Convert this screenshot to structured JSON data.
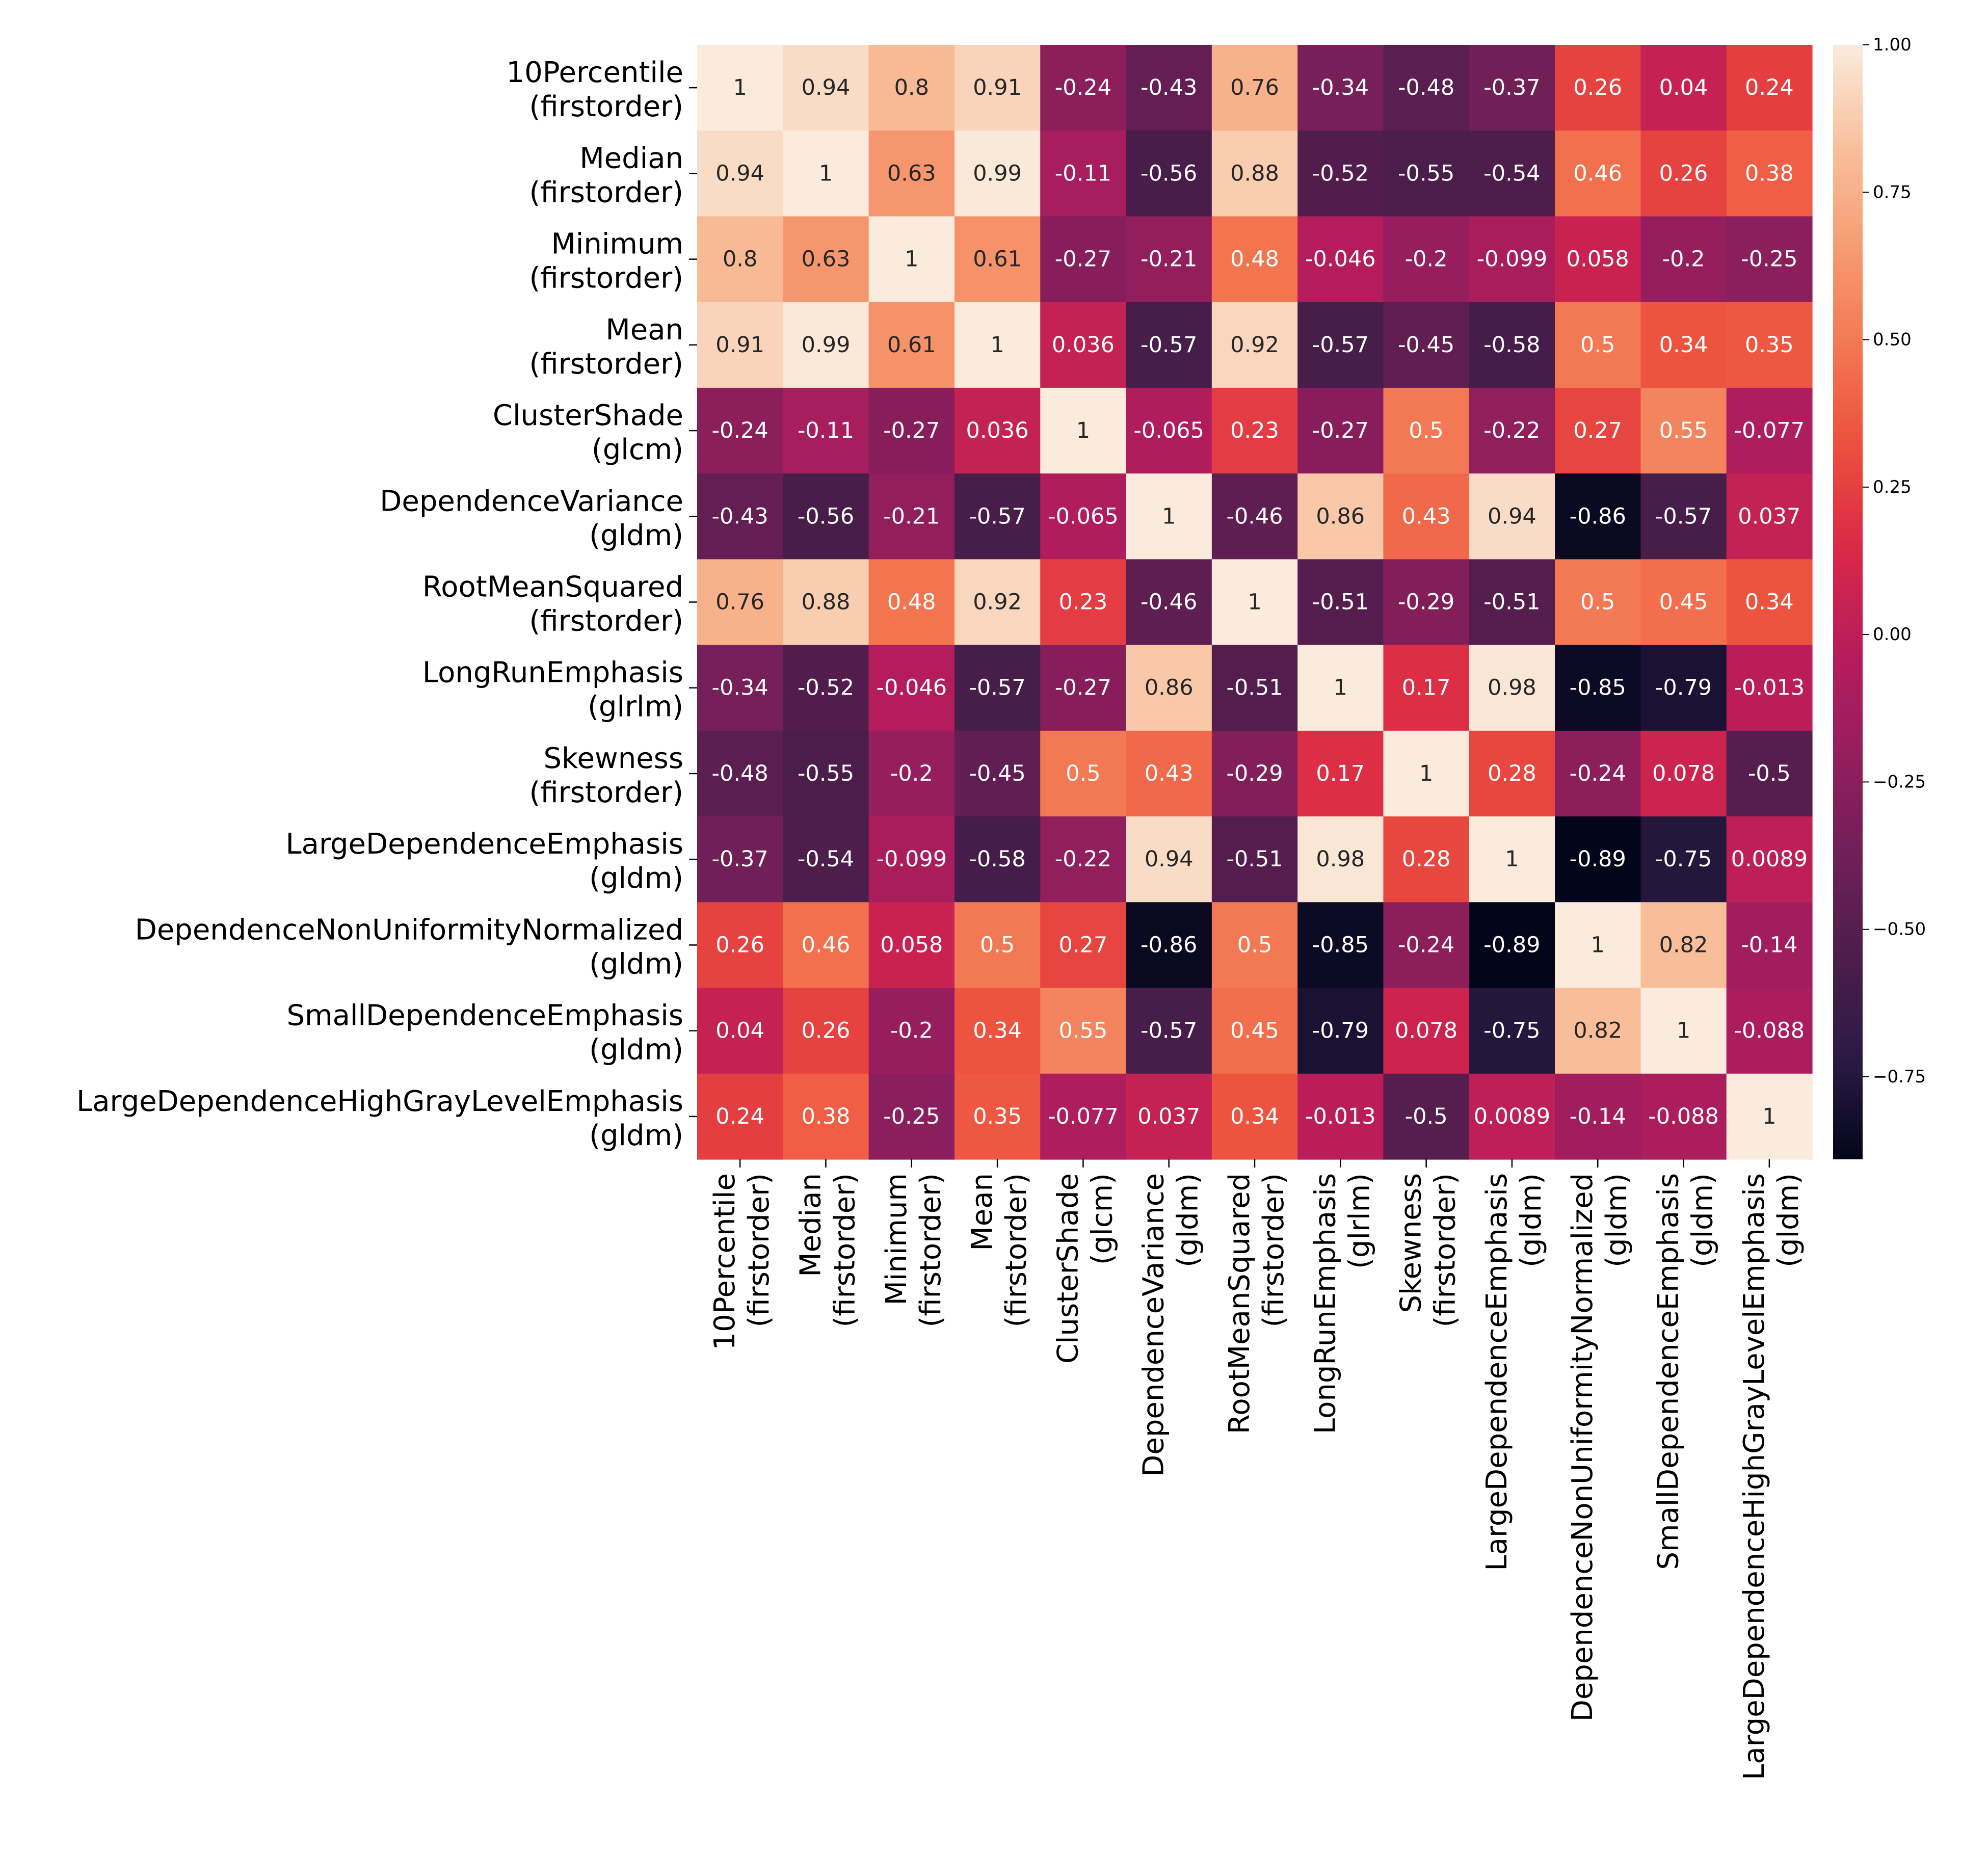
{
  "chart_data": {
    "type": "heatmap",
    "title": "",
    "row_labels": [
      [
        "10Percentile",
        "(firstorder)"
      ],
      [
        "Median",
        "(firstorder)"
      ],
      [
        "Minimum",
        "(firstorder)"
      ],
      [
        "Mean",
        "(firstorder)"
      ],
      [
        "ClusterShade",
        "(glcm)"
      ],
      [
        "DependenceVariance",
        "(gldm)"
      ],
      [
        "RootMeanSquared",
        "(firstorder)"
      ],
      [
        "LongRunEmphasis",
        "(glrlm)"
      ],
      [
        "Skewness",
        "(firstorder)"
      ],
      [
        "LargeDependenceEmphasis",
        "(gldm)"
      ],
      [
        "DependenceNonUniformityNormalized",
        "(gldm)"
      ],
      [
        "SmallDependenceEmphasis",
        "(gldm)"
      ],
      [
        "LargeDependenceHighGrayLevelEmphasis",
        "(gldm)"
      ]
    ],
    "col_labels": [
      [
        "10Percentile",
        "(firstorder)"
      ],
      [
        "Median",
        "(firstorder)"
      ],
      [
        "Minimum",
        "(firstorder)"
      ],
      [
        "Mean",
        "(firstorder)"
      ],
      [
        "ClusterShade",
        "(glcm)"
      ],
      [
        "DependenceVariance",
        "(gldm)"
      ],
      [
        "RootMeanSquared",
        "(firstorder)"
      ],
      [
        "LongRunEmphasis",
        "(glrlm)"
      ],
      [
        "Skewness",
        "(firstorder)"
      ],
      [
        "LargeDependenceEmphasis",
        "(gldm)"
      ],
      [
        "DependenceNonUniformityNormalized",
        "(gldm)"
      ],
      [
        "SmallDependenceEmphasis",
        "(gldm)"
      ],
      [
        "LargeDependenceHighGrayLevelEmphasis",
        "(gldm)"
      ]
    ],
    "values": [
      [
        1,
        0.94,
        0.8,
        0.91,
        -0.24,
        -0.43,
        0.76,
        -0.34,
        -0.48,
        -0.37,
        0.26,
        0.04,
        0.24
      ],
      [
        0.94,
        1,
        0.63,
        0.99,
        -0.11,
        -0.56,
        0.88,
        -0.52,
        -0.55,
        -0.54,
        0.46,
        0.26,
        0.38
      ],
      [
        0.8,
        0.63,
        1,
        0.61,
        -0.27,
        -0.21,
        0.48,
        -0.046,
        -0.2,
        -0.099,
        0.058,
        -0.2,
        -0.25
      ],
      [
        0.91,
        0.99,
        0.61,
        1,
        0.036,
        -0.57,
        0.92,
        -0.57,
        -0.45,
        -0.58,
        0.5,
        0.34,
        0.35
      ],
      [
        -0.24,
        -0.11,
        -0.27,
        0.036,
        1,
        -0.065,
        0.23,
        -0.27,
        0.5,
        -0.22,
        0.27,
        0.55,
        -0.077
      ],
      [
        -0.43,
        -0.56,
        -0.21,
        -0.57,
        -0.065,
        1,
        -0.46,
        0.86,
        0.43,
        0.94,
        -0.86,
        -0.57,
        0.037
      ],
      [
        0.76,
        0.88,
        0.48,
        0.92,
        0.23,
        -0.46,
        1,
        -0.51,
        -0.29,
        -0.51,
        0.5,
        0.45,
        0.34
      ],
      [
        -0.34,
        -0.52,
        -0.046,
        -0.57,
        -0.27,
        0.86,
        -0.51,
        1,
        0.17,
        0.98,
        -0.85,
        -0.79,
        -0.013
      ],
      [
        -0.48,
        -0.55,
        -0.2,
        -0.45,
        0.5,
        0.43,
        -0.29,
        0.17,
        1,
        0.28,
        -0.24,
        0.078,
        -0.5
      ],
      [
        -0.37,
        -0.54,
        -0.099,
        -0.58,
        -0.22,
        0.94,
        -0.51,
        0.98,
        0.28,
        1,
        -0.89,
        -0.75,
        0.0089
      ],
      [
        0.26,
        0.46,
        0.058,
        0.5,
        0.27,
        -0.86,
        0.5,
        -0.85,
        -0.24,
        -0.89,
        1,
        0.82,
        -0.14
      ],
      [
        0.04,
        0.26,
        -0.2,
        0.34,
        0.55,
        -0.57,
        0.45,
        -0.79,
        0.078,
        -0.75,
        0.82,
        1,
        -0.088
      ],
      [
        0.24,
        0.38,
        -0.25,
        0.35,
        -0.077,
        0.037,
        0.34,
        -0.013,
        -0.5,
        0.0089,
        -0.14,
        -0.088,
        1
      ]
    ],
    "value_labels": [
      [
        "1",
        "0.94",
        "0.8",
        "0.91",
        "-0.24",
        "-0.43",
        "0.76",
        "-0.34",
        "-0.48",
        "-0.37",
        "0.26",
        "0.04",
        "0.24"
      ],
      [
        "0.94",
        "1",
        "0.63",
        "0.99",
        "-0.11",
        "-0.56",
        "0.88",
        "-0.52",
        "-0.55",
        "-0.54",
        "0.46",
        "0.26",
        "0.38"
      ],
      [
        "0.8",
        "0.63",
        "1",
        "0.61",
        "-0.27",
        "-0.21",
        "0.48",
        "-0.046",
        "-0.2",
        "-0.099",
        "0.058",
        "-0.2",
        "-0.25"
      ],
      [
        "0.91",
        "0.99",
        "0.61",
        "1",
        "0.036",
        "-0.57",
        "0.92",
        "-0.57",
        "-0.45",
        "-0.58",
        "0.5",
        "0.34",
        "0.35"
      ],
      [
        "-0.24",
        "-0.11",
        "-0.27",
        "0.036",
        "1",
        "-0.065",
        "0.23",
        "-0.27",
        "0.5",
        "-0.22",
        "0.27",
        "0.55",
        "-0.077"
      ],
      [
        "-0.43",
        "-0.56",
        "-0.21",
        "-0.57",
        "-0.065",
        "1",
        "-0.46",
        "0.86",
        "0.43",
        "0.94",
        "-0.86",
        "-0.57",
        "0.037"
      ],
      [
        "0.76",
        "0.88",
        "0.48",
        "0.92",
        "0.23",
        "-0.46",
        "1",
        "-0.51",
        "-0.29",
        "-0.51",
        "0.5",
        "0.45",
        "0.34"
      ],
      [
        "-0.34",
        "-0.52",
        "-0.046",
        "-0.57",
        "-0.27",
        "0.86",
        "-0.51",
        "1",
        "0.17",
        "0.98",
        "-0.85",
        "-0.79",
        "-0.013"
      ],
      [
        "-0.48",
        "-0.55",
        "-0.2",
        "-0.45",
        "0.5",
        "0.43",
        "-0.29",
        "0.17",
        "1",
        "0.28",
        "-0.24",
        "0.078",
        "-0.5"
      ],
      [
        "-0.37",
        "-0.54",
        "-0.099",
        "-0.58",
        "-0.22",
        "0.94",
        "-0.51",
        "0.98",
        "0.28",
        "1",
        "-0.89",
        "-0.75",
        "0.0089"
      ],
      [
        "0.26",
        "0.46",
        "0.058",
        "0.5",
        "0.27",
        "-0.86",
        "0.5",
        "-0.85",
        "-0.24",
        "-0.89",
        "1",
        "0.82",
        "-0.14"
      ],
      [
        "0.04",
        "0.26",
        "-0.2",
        "0.34",
        "0.55",
        "-0.57",
        "0.45",
        "-0.79",
        "0.078",
        "-0.75",
        "0.82",
        "1",
        "-0.088"
      ],
      [
        "0.24",
        "0.38",
        "-0.25",
        "0.35",
        "-0.077",
        "0.037",
        "0.34",
        "-0.013",
        "-0.5",
        "0.0089",
        "-0.14",
        "-0.088",
        "1"
      ]
    ],
    "colormap": "rocket",
    "colormap_stops": [
      "#03051a",
      "#2b1b44",
      "#4c1d4b",
      "#701f57",
      "#951e5e",
      "#b71c5c",
      "#d92847",
      "#ec4e3d",
      "#f37651",
      "#f69c73",
      "#f8c09c",
      "#faebdd"
    ],
    "vmin": -0.89,
    "vmax": 1,
    "colorbar": {
      "ticks": [
        1,
        0.75,
        0.5,
        0.25,
        0,
        -0.25,
        -0.5,
        -0.75
      ],
      "tick_labels": [
        "1.00",
        "0.75",
        "0.50",
        "0.25",
        "0.00",
        "−0.25",
        "−0.50",
        "−0.75"
      ]
    },
    "light_text_color": "#ffffff",
    "dark_text_color": "#262626"
  }
}
